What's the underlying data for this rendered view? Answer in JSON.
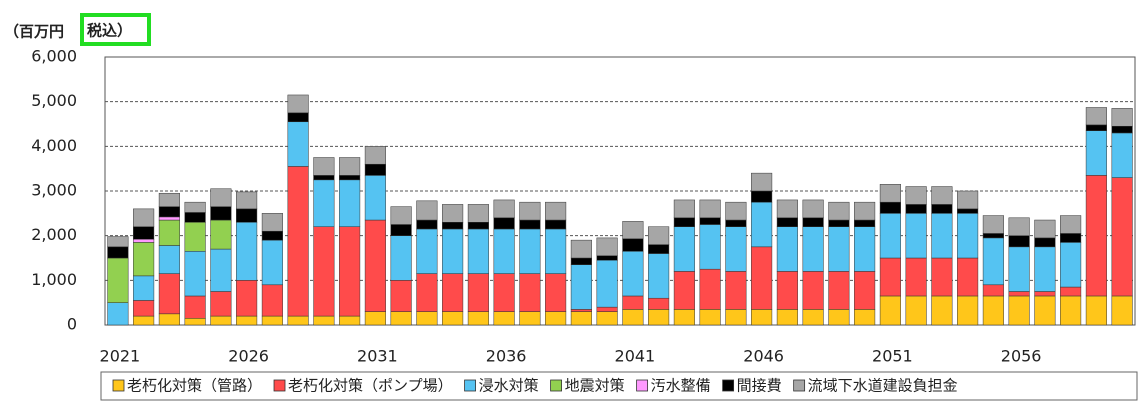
{
  "chart_data": {
    "type": "stacked_bar",
    "ylabel": "（百万円",
    "ylabel_note": "税込）",
    "categories": [
      "2021",
      null,
      null,
      null,
      null,
      "2026",
      null,
      null,
      null,
      null,
      "2031",
      null,
      null,
      null,
      null,
      "2036",
      null,
      null,
      null,
      null,
      "2041",
      null,
      null,
      null,
      null,
      "2046",
      null,
      null,
      null,
      null,
      "2051",
      null,
      null,
      null,
      null,
      "2056",
      null,
      null,
      null,
      null
    ],
    "series": [
      {
        "name": "老朽化対策（管路）",
        "color": "#FFC61A",
        "values": [
          0,
          200,
          250,
          150,
          200,
          200,
          200,
          200,
          200,
          200,
          300,
          300,
          300,
          300,
          300,
          300,
          300,
          300,
          300,
          300,
          350,
          350,
          350,
          350,
          350,
          350,
          350,
          350,
          350,
          350,
          650,
          650,
          650,
          650,
          650,
          650,
          650,
          650,
          650,
          650
        ]
      },
      {
        "name": "老朽化対策（ポンプ場）",
        "color": "#FF4B4B",
        "values": [
          0,
          350,
          900,
          500,
          550,
          800,
          700,
          3350,
          2000,
          2000,
          2050,
          700,
          850,
          850,
          850,
          850,
          850,
          850,
          50,
          100,
          300,
          250,
          850,
          900,
          850,
          1400,
          850,
          850,
          850,
          850,
          850,
          850,
          850,
          850,
          250,
          100,
          100,
          200,
          2700,
          2650
        ]
      },
      {
        "name": "浸水対策",
        "color": "#55C3F2",
        "values": [
          500,
          550,
          630,
          1000,
          950,
          1300,
          1000,
          1000,
          1050,
          1050,
          1000,
          1000,
          1000,
          1000,
          1000,
          1000,
          1000,
          1000,
          1000,
          1050,
          1000,
          1000,
          1000,
          1000,
          1000,
          1000,
          1000,
          1000,
          1000,
          1000,
          1000,
          1000,
          1000,
          1000,
          1050,
          1000,
          1000,
          1000,
          1000,
          1000
        ]
      },
      {
        "name": "地震対策",
        "color": "#92D050",
        "values": [
          1000,
          750,
          570,
          650,
          650,
          0,
          0,
          0,
          0,
          0,
          0,
          0,
          0,
          0,
          0,
          0,
          0,
          0,
          0,
          0,
          0,
          0,
          0,
          0,
          0,
          0,
          0,
          0,
          0,
          0,
          0,
          0,
          0,
          0,
          0,
          0,
          0,
          0,
          0,
          0
        ]
      },
      {
        "name": "汚水整備",
        "color": "#FF99FF",
        "values": [
          0,
          70,
          70,
          0,
          0,
          0,
          0,
          0,
          0,
          0,
          0,
          0,
          0,
          0,
          0,
          0,
          0,
          0,
          0,
          0,
          0,
          0,
          0,
          0,
          0,
          0,
          0,
          0,
          0,
          0,
          0,
          0,
          0,
          0,
          0,
          0,
          0,
          0,
          0,
          0
        ]
      },
      {
        "name": "間接費",
        "color": "#000000",
        "values": [
          250,
          280,
          230,
          220,
          300,
          300,
          200,
          200,
          100,
          100,
          250,
          250,
          200,
          150,
          150,
          250,
          200,
          200,
          150,
          100,
          280,
          200,
          200,
          150,
          150,
          250,
          200,
          200,
          150,
          150,
          250,
          200,
          200,
          100,
          100,
          250,
          200,
          200,
          130,
          150
        ]
      },
      {
        "name": "流域下水道建設負担金",
        "color": "#A6A6A6",
        "values": [
          230,
          400,
          300,
          230,
          400,
          380,
          400,
          400,
          400,
          400,
          400,
          400,
          430,
          400,
          400,
          400,
          400,
          400,
          400,
          400,
          390,
          400,
          400,
          400,
          400,
          400,
          400,
          400,
          400,
          400,
          400,
          400,
          400,
          400,
          400,
          400,
          400,
          400,
          390,
          400
        ]
      }
    ],
    "ylim": [
      0,
      6000
    ],
    "yticks": [
      0,
      {
        "value": 1000,
        "label": "1,000"
      },
      {
        "value": 2000,
        "label": "2,000"
      },
      {
        "value": 3000,
        "label": "3,000"
      },
      {
        "value": 4000,
        "label": "4,000"
      },
      {
        "value": 5000,
        "label": "5,000"
      },
      {
        "value": 6000,
        "label": "6,000"
      }
    ],
    "grid": true,
    "legend": "bottom"
  }
}
